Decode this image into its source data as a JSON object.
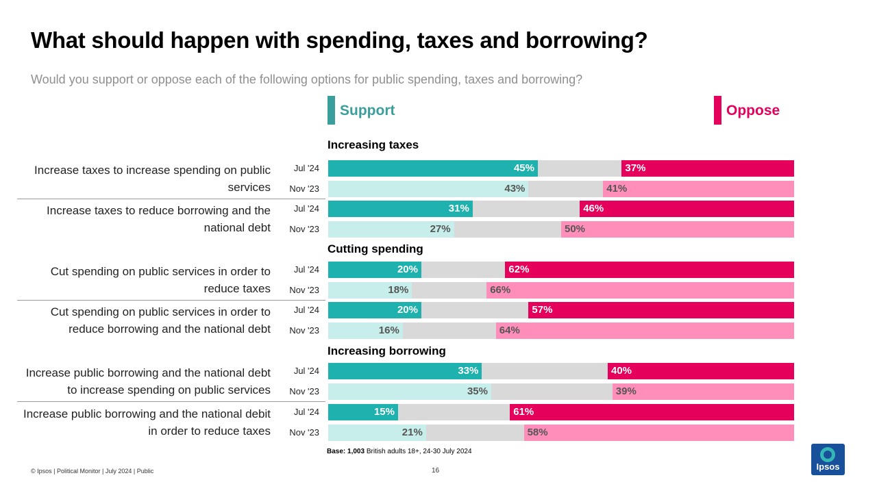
{
  "title": "What should happen with spending, taxes and borrowing?",
  "subtitle": "Would you support or oppose each of the following options for public spending, taxes and borrowing?",
  "legend": {
    "support": "Support",
    "oppose": "Oppose"
  },
  "colors": {
    "support_current": "#1fb1ad",
    "support_previous": "#c7eeeb",
    "oppose_current": "#e5005b",
    "oppose_previous": "#ff8fba",
    "neutral": "#d9d9d9",
    "support_legend": "#3a9e9c",
    "oppose_legend": "#e5005b",
    "label_dark": "#ffffff",
    "label_light": "#555555"
  },
  "chart_data": {
    "type": "bar",
    "orientation": "horizontal-diverging-100pct",
    "title": "What should happen with spending, taxes and borrowing?",
    "subtitle": "Would you support or oppose each of the following options for public spending, taxes and borrowing?",
    "value_unit": "%",
    "series": [
      {
        "name": "Support"
      },
      {
        "name": "Oppose"
      }
    ],
    "groups": [
      {
        "section": "Increasing taxes",
        "label": "Increase taxes to increase spending on public services",
        "rows": [
          {
            "period": "Jul '24",
            "support": 45,
            "oppose": 37,
            "current": true
          },
          {
            "period": "Nov '23",
            "support": 43,
            "oppose": 41,
            "current": false
          }
        ]
      },
      {
        "section": "",
        "label": "Increase taxes to reduce borrowing and the national debt",
        "rows": [
          {
            "period": "Jul '24",
            "support": 31,
            "oppose": 46,
            "current": true
          },
          {
            "period": "Nov '23",
            "support": 27,
            "oppose": 50,
            "current": false
          }
        ]
      },
      {
        "section": "Cutting spending",
        "label": "Cut spending on public services in order to reduce taxes",
        "rows": [
          {
            "period": "Jul '24",
            "support": 20,
            "oppose": 62,
            "current": true
          },
          {
            "period": "Nov '23",
            "support": 18,
            "oppose": 66,
            "current": false
          }
        ]
      },
      {
        "section": "",
        "label": "Cut spending on public services in order to reduce borrowing and the national debt",
        "rows": [
          {
            "period": "Jul '24",
            "support": 20,
            "oppose": 57,
            "current": true
          },
          {
            "period": "Nov '23",
            "support": 16,
            "oppose": 64,
            "current": false
          }
        ]
      },
      {
        "section": "Increasing borrowing",
        "label": "Increase public borrowing and the national debt to increase spending on public services",
        "rows": [
          {
            "period": "Jul '24",
            "support": 33,
            "oppose": 40,
            "current": true
          },
          {
            "period": "Nov '23",
            "support": 35,
            "oppose": 39,
            "current": false
          }
        ]
      },
      {
        "section": "",
        "label": "Increase public borrowing and the national debit in order to reduce taxes",
        "rows": [
          {
            "period": "Jul '24",
            "support": 15,
            "oppose": 61,
            "current": true
          },
          {
            "period": "Nov '23",
            "support": 21,
            "oppose": 58,
            "current": false
          }
        ]
      }
    ]
  },
  "base_note": {
    "bold": "Base: 1,003",
    "rest": " British adults 18+, 24-30 July 2024"
  },
  "footer": {
    "source": "© Ipsos | Political Monitor | July 2024 | Public",
    "page": "16"
  },
  "logo": {
    "text": "Ipsos"
  }
}
